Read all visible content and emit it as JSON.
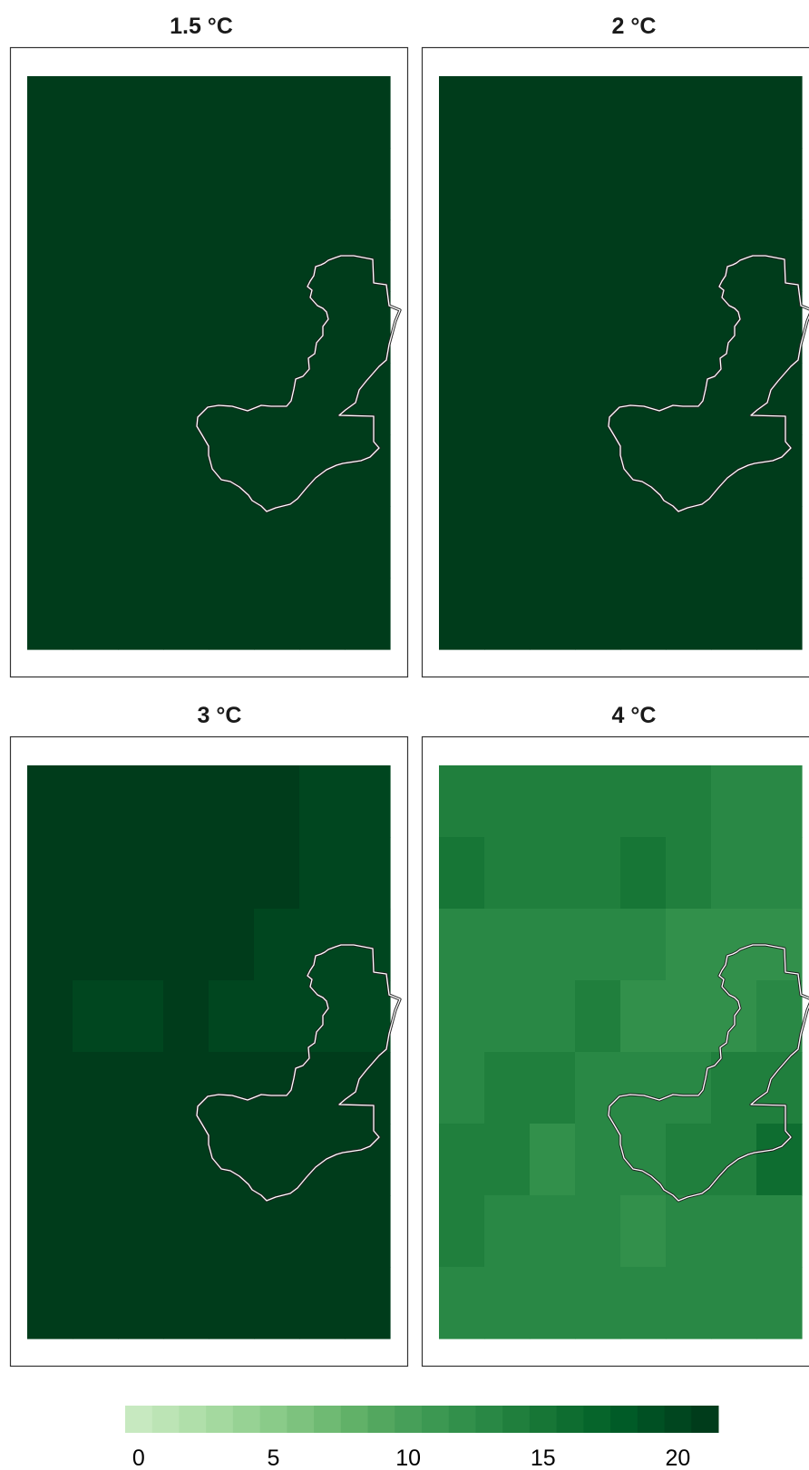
{
  "chart_data": {
    "type": "heatmap",
    "panels": [
      {
        "title": "1.5 °C",
        "grid": [
          [
            21,
            21,
            21,
            21,
            21,
            21,
            21,
            21
          ],
          [
            21,
            21,
            21,
            21,
            21,
            21,
            21,
            21
          ],
          [
            21,
            21,
            21,
            21,
            21,
            21,
            21,
            21
          ],
          [
            21,
            21,
            21,
            21,
            21,
            21,
            21,
            21
          ],
          [
            21,
            21,
            21,
            21,
            21,
            21,
            21,
            21
          ],
          [
            21,
            21,
            21,
            21,
            21,
            21,
            21,
            21
          ],
          [
            21,
            21,
            21,
            21,
            21,
            21,
            21,
            21
          ],
          [
            21,
            21,
            21,
            21,
            21,
            21,
            21,
            21
          ]
        ]
      },
      {
        "title": "2 °C",
        "grid": [
          [
            22,
            22,
            22,
            22,
            22,
            22,
            22,
            22
          ],
          [
            22,
            22,
            22,
            22,
            22,
            22,
            22,
            22
          ],
          [
            22,
            22,
            22,
            22,
            22,
            22,
            22,
            22
          ],
          [
            22,
            22,
            22,
            22,
            22,
            22,
            22,
            22
          ],
          [
            22,
            22,
            22,
            22,
            22,
            22,
            22,
            22
          ],
          [
            22,
            22,
            22,
            22,
            22,
            22,
            22,
            22
          ],
          [
            22,
            22,
            22,
            22,
            22,
            22,
            22,
            22
          ],
          [
            22,
            22,
            22,
            22,
            22,
            22,
            22,
            22
          ]
        ]
      },
      {
        "title": "3 °C",
        "grid": [
          [
            21,
            21,
            21,
            21,
            21,
            21,
            20,
            20
          ],
          [
            21,
            21,
            21,
            21,
            21,
            21,
            20,
            20
          ],
          [
            21,
            21,
            21,
            21,
            21,
            20,
            20,
            20
          ],
          [
            21,
            20,
            20,
            21,
            20,
            20,
            20,
            20
          ],
          [
            21,
            21,
            21,
            21,
            21,
            21,
            21,
            21
          ],
          [
            21,
            21,
            21,
            21,
            21,
            21,
            21,
            21
          ],
          [
            21,
            21,
            21,
            21,
            21,
            21,
            21,
            21
          ],
          [
            21,
            21,
            21,
            21,
            21,
            21,
            21,
            21
          ]
        ]
      },
      {
        "title": "4 °C",
        "grid": [
          [
            14,
            14,
            14,
            14,
            14,
            14,
            13,
            13
          ],
          [
            15,
            14,
            14,
            14,
            15,
            14,
            13,
            13
          ],
          [
            13,
            13,
            13,
            13,
            13,
            12,
            12,
            12
          ],
          [
            13,
            13,
            13,
            14,
            12,
            12,
            12,
            13
          ],
          [
            13,
            14,
            14,
            13,
            13,
            13,
            14,
            14
          ],
          [
            14,
            14,
            12,
            13,
            13,
            14,
            14,
            16
          ],
          [
            14,
            13,
            13,
            13,
            12,
            13,
            13,
            13
          ],
          [
            13,
            13,
            13,
            13,
            13,
            13,
            13,
            13
          ]
        ]
      }
    ],
    "colorbar": {
      "ticks": [
        0,
        5,
        10,
        15,
        20
      ],
      "range": [
        0,
        22
      ],
      "colors": [
        "#c7e9c0",
        "#bce4b5",
        "#b0dfaa",
        "#a4d99f",
        "#97d294",
        "#8acb89",
        "#7dc27e",
        "#6fba73",
        "#61b168",
        "#53a75f",
        "#479f59",
        "#3c9852",
        "#32904b",
        "#298845",
        "#207f3d",
        "#177636",
        "#0e6d30",
        "#06652b",
        "#005b27",
        "#005023",
        "#00461f",
        "#003c1b"
      ]
    },
    "outline_color": "#ffffff",
    "grid": false,
    "legend": "bottom"
  }
}
